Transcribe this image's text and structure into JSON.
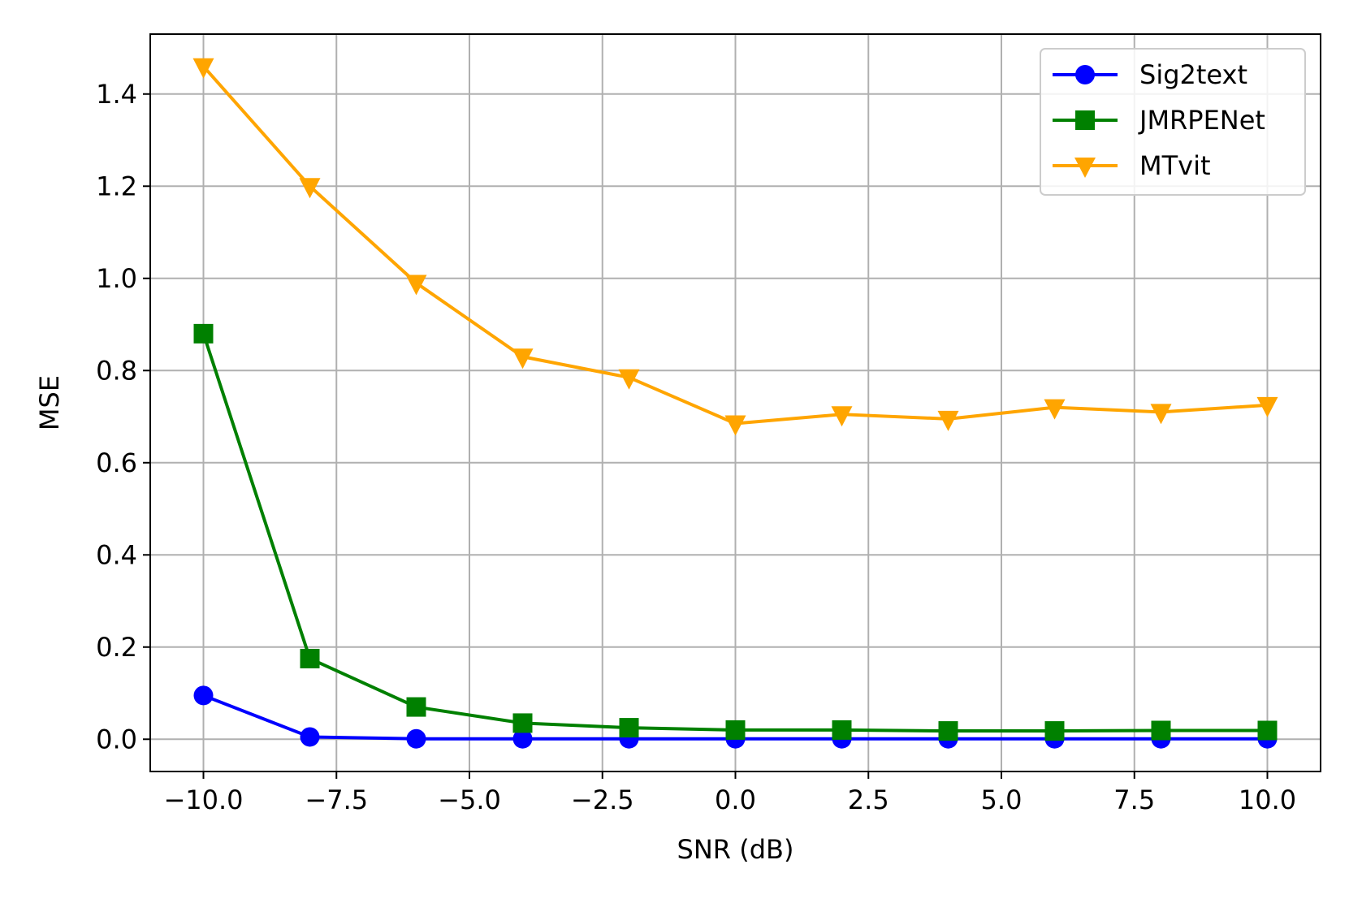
{
  "chart_data": {
    "type": "line",
    "xlabel": "SNR (dB)",
    "ylabel": "MSE",
    "xlim": [
      -11.0,
      11.0
    ],
    "ylim": [
      -0.07,
      1.53
    ],
    "xticks": [
      -10.0,
      -7.5,
      -5.0,
      -2.5,
      0.0,
      2.5,
      5.0,
      7.5,
      10.0
    ],
    "xtick_labels": [
      "−10.0",
      "−7.5",
      "−5.0",
      "−2.5",
      "0.0",
      "2.5",
      "5.0",
      "7.5",
      "10.0"
    ],
    "yticks": [
      0.0,
      0.2,
      0.4,
      0.6,
      0.8,
      1.0,
      1.2,
      1.4
    ],
    "ytick_labels": [
      "0.0",
      "0.2",
      "0.4",
      "0.6",
      "0.8",
      "1.0",
      "1.2",
      "1.4"
    ],
    "grid": true,
    "legend_position": "top-right",
    "x": [
      -10,
      -8,
      -6,
      -4,
      -2,
      0,
      2,
      4,
      6,
      8,
      10
    ],
    "series": [
      {
        "name": "Sig2text",
        "color": "#0000ff",
        "marker": "circle",
        "values": [
          0.095,
          0.005,
          0.001,
          0.001,
          0.001,
          0.001,
          0.001,
          0.001,
          0.001,
          0.001,
          0.001
        ]
      },
      {
        "name": "JMRPENet",
        "color": "#008000",
        "marker": "square",
        "values": [
          0.88,
          0.175,
          0.07,
          0.035,
          0.025,
          0.02,
          0.02,
          0.018,
          0.018,
          0.019,
          0.019
        ]
      },
      {
        "name": "MTvit",
        "color": "#ffa500",
        "marker": "triangle-down",
        "values": [
          1.46,
          1.2,
          0.99,
          0.83,
          0.785,
          0.685,
          0.705,
          0.695,
          0.72,
          0.71,
          0.725
        ]
      }
    ]
  }
}
